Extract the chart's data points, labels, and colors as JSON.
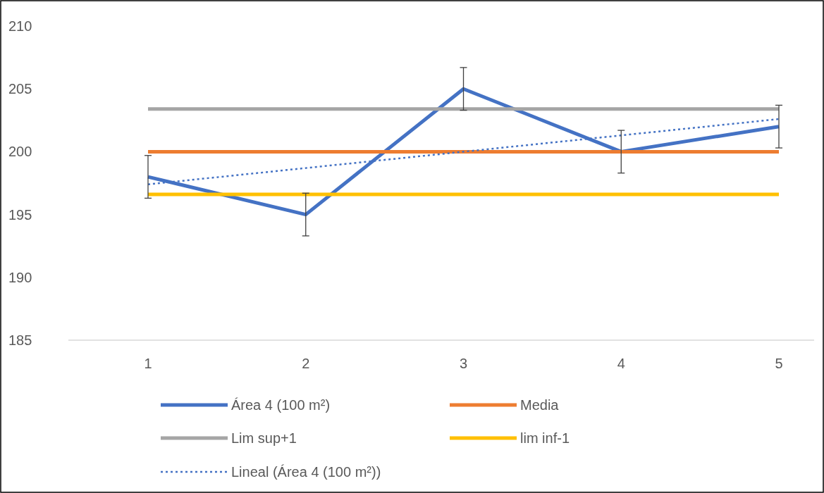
{
  "chart_data": {
    "type": "line",
    "categories": [
      "1",
      "2",
      "3",
      "4",
      "5"
    ],
    "ylim": [
      185,
      210
    ],
    "yticks": [
      185,
      190,
      195,
      200,
      205,
      210
    ],
    "grid": false,
    "legend": "bottom",
    "marker": "none",
    "series": [
      {
        "name": "Área 4 (100 m²)",
        "color": "#4472c4",
        "values": [
          198,
          195,
          205,
          200,
          202
        ],
        "errors": [
          1.7,
          1.7,
          1.7,
          1.7,
          1.7
        ]
      },
      {
        "name": "Media",
        "color": "#ed7d31",
        "values": [
          200,
          200,
          200,
          200,
          200
        ]
      },
      {
        "name": "Lim sup+1",
        "color": "#a5a5a5",
        "values": [
          203.4,
          203.4,
          203.4,
          203.4,
          203.4
        ]
      },
      {
        "name": "lim inf-1",
        "color": "#ffc000",
        "values": [
          196.6,
          196.6,
          196.6,
          196.6,
          196.6
        ]
      },
      {
        "name": "Lineal (Área 4 (100 m²))",
        "color": "#4472c4",
        "x": [
          "1",
          "5"
        ],
        "values": [
          197.4,
          202.6
        ],
        "line_style": "dotted"
      }
    ]
  }
}
